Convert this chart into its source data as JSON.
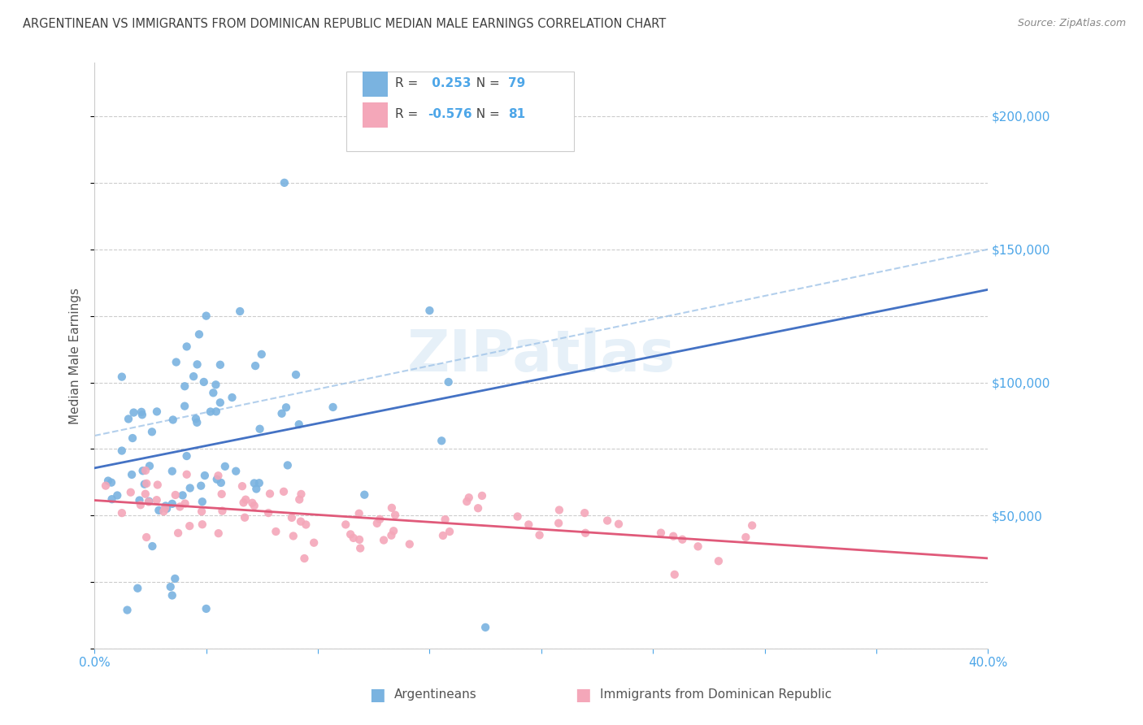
{
  "title": "ARGENTINEAN VS IMMIGRANTS FROM DOMINICAN REPUBLIC MEDIAN MALE EARNINGS CORRELATION CHART",
  "source": "Source: ZipAtlas.com",
  "ylabel": "Median Male Earnings",
  "x_min": 0.0,
  "x_max": 0.4,
  "y_min": 0,
  "y_max": 220000,
  "yticks": [
    0,
    50000,
    100000,
    150000,
    200000
  ],
  "ytick_labels": [
    "",
    "$50,000",
    "$100,000",
    "$150,000",
    "$200,000"
  ],
  "xticks": [
    0.0,
    0.05,
    0.1,
    0.15,
    0.2,
    0.25,
    0.3,
    0.35,
    0.4
  ],
  "xtick_labels": [
    "0.0%",
    "",
    "",
    "",
    "",
    "",
    "",
    "",
    "40.0%"
  ],
  "argentinean_R": 0.253,
  "argentinean_N": 79,
  "dominican_R": -0.576,
  "dominican_N": 81,
  "blue_color": "#7ab3e0",
  "pink_color": "#f4a7b9",
  "trend_blue": "#4472c4",
  "trend_pink": "#e05a7a",
  "dash_color": "#a0c4e8",
  "watermark_text": "ZIPatlas",
  "background_color": "#ffffff",
  "grid_color": "#cccccc",
  "title_color": "#404040",
  "axis_label_color": "#4da6e8",
  "source_color": "#888888",
  "ylabel_color": "#555555",
  "bottom_legend_color": "#555555"
}
